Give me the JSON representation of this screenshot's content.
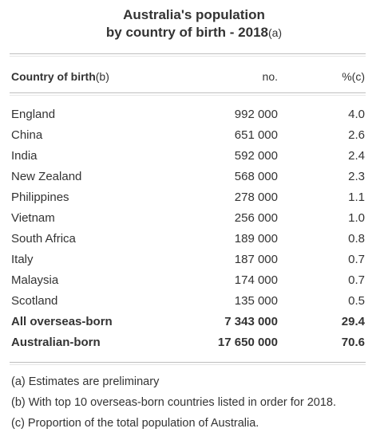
{
  "title": {
    "line1": "Australia's population",
    "line2": "by country of birth - 2018",
    "line2_note": "(a)"
  },
  "table": {
    "headers": {
      "country": "Country of birth",
      "country_note": "(b)",
      "number": "no.",
      "percent": "%(c)"
    },
    "rows": [
      {
        "country": "England",
        "number": "992 000",
        "percent": "4.0"
      },
      {
        "country": "China",
        "number": "651 000",
        "percent": "2.6"
      },
      {
        "country": "India",
        "number": "592 000",
        "percent": "2.4"
      },
      {
        "country": "New Zealand",
        "number": "568 000",
        "percent": "2.3"
      },
      {
        "country": "Philippines",
        "number": "278 000",
        "percent": "1.1"
      },
      {
        "country": "Vietnam",
        "number": "256 000",
        "percent": "1.0"
      },
      {
        "country": "South Africa",
        "number": "189 000",
        "percent": "0.8"
      },
      {
        "country": "Italy",
        "number": "187 000",
        "percent": "0.7"
      },
      {
        "country": "Malaysia",
        "number": "174 000",
        "percent": "0.7"
      },
      {
        "country": "Scotland",
        "number": "135 000",
        "percent": "0.5"
      }
    ],
    "totals": [
      {
        "country": "All overseas-born",
        "number": "7 343 000",
        "percent": "29.4"
      },
      {
        "country": "Australian-born",
        "number": "17 650 000",
        "percent": "70.6"
      }
    ]
  },
  "notes": [
    "(a) Estimates are preliminary",
    "(b) With top 10 overseas-born countries listed in order for 2018.",
    "(c) Proportion of the total population of Australia."
  ]
}
